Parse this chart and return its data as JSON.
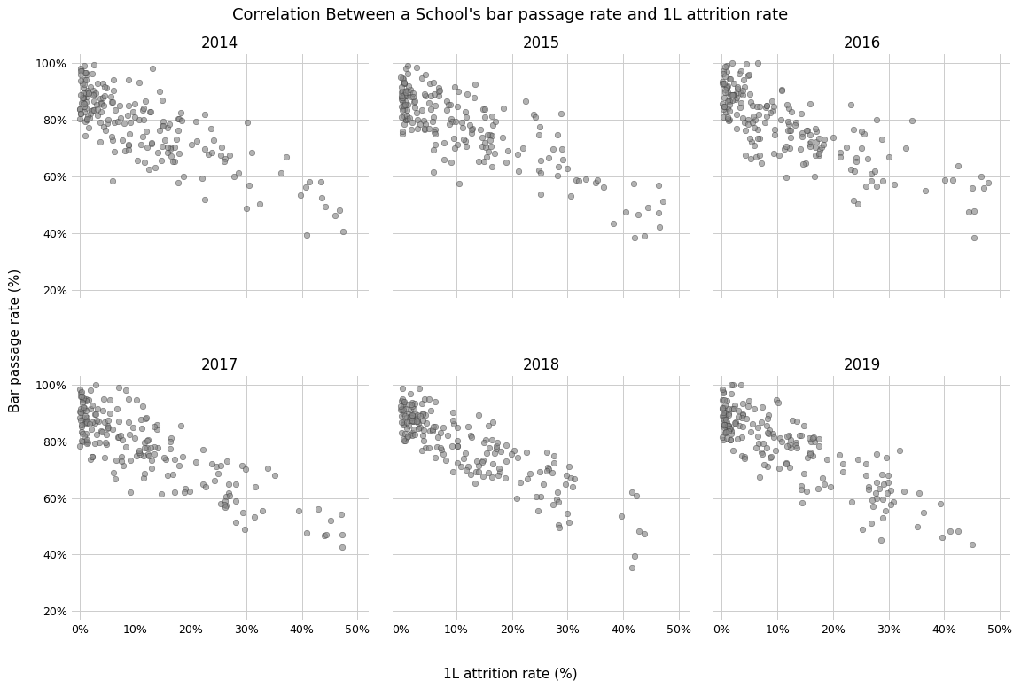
{
  "title": "Correlation Between a School's bar passage rate and 1L attrition rate",
  "xlabel": "1L attrition rate (%)",
  "ylabel": "Bar passage rate (%)",
  "years": [
    2014,
    2015,
    2016,
    2017,
    2018,
    2019
  ],
  "xlim": [
    -0.015,
    0.52
  ],
  "ylim": [
    0.17,
    1.03
  ],
  "xticks": [
    0,
    0.1,
    0.2,
    0.3,
    0.4,
    0.5
  ],
  "yticks": [
    0.2,
    0.4,
    0.6,
    0.8,
    1.0
  ],
  "dot_color": "#888888",
  "dot_edge_color": "#333333",
  "dot_alpha": 0.65,
  "dot_size": 22,
  "background_color": "#ffffff",
  "grid_color": "#cccccc",
  "title_fontsize": 13,
  "label_fontsize": 11,
  "tick_fontsize": 9,
  "subplot_title_fontsize": 12,
  "seed": 42,
  "n_points": 185
}
